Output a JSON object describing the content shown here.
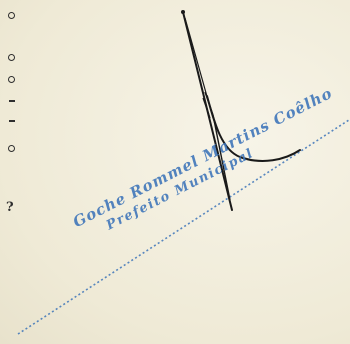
{
  "stamp": {
    "name": "Goche Rommel Martins Coêlho",
    "title": "Prefeito Municipal",
    "color": "#3b73b9"
  },
  "signature": {
    "description_icon": "handwritten-signature",
    "ink_color": "#1a1a1a"
  },
  "page": {
    "paper_color": "#f3efdf"
  }
}
